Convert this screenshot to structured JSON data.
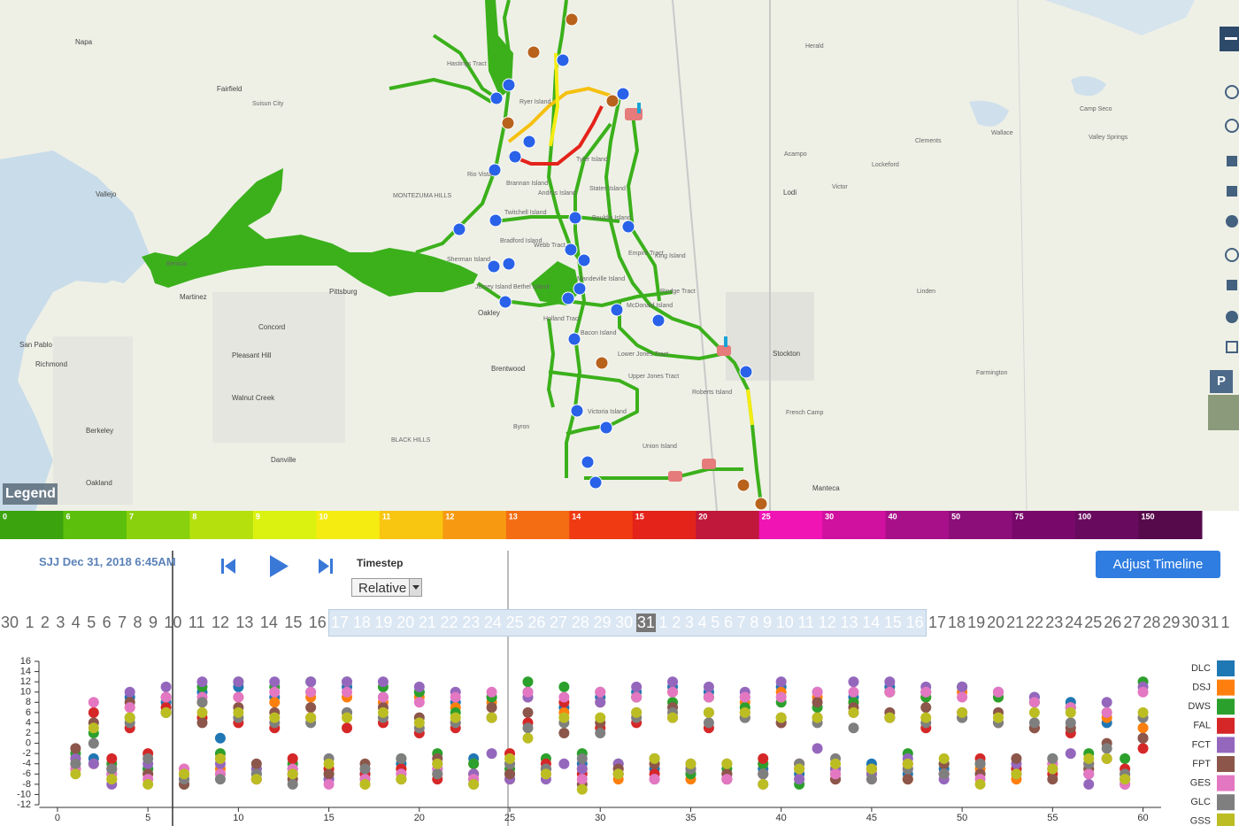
{
  "map": {
    "legend_label": "Legend",
    "labels": [
      "Napa",
      "Fairfield",
      "Suisun City",
      "Vallejo",
      "Benicia",
      "Martinez",
      "Concord",
      "Pittsburg",
      "Oakley",
      "Brentwood",
      "Richmond",
      "Berkeley",
      "Oakland",
      "Walnut Creek",
      "Pleasant Hill",
      "Danville",
      "San Pablo",
      "Stockton",
      "Lodi",
      "Manteca",
      "Lockeford",
      "Clements",
      "Acampo",
      "Victor",
      "Linden",
      "Farmington",
      "Herald",
      "Rio Vista",
      "MONTEZUMA HILLS",
      "Ryer Island",
      "Tyler Island",
      "Staten Island",
      "Bouldin Island",
      "Empire Tract",
      "King Island",
      "Webb Tract",
      "Sherman Island",
      "Bethel Island",
      "Jersey Island",
      "Holland Tract",
      "Bacon Island",
      "McDonald Island",
      "Mandeville Island",
      "Lower Jones Tract",
      "Upper Jones Tract",
      "Roberts Island",
      "Victoria Island",
      "Union Island",
      "Rindge Tract",
      "Hastings Tract",
      "Twitchell Island",
      "Bradford Island",
      "Andrus Island",
      "Brannan Island",
      "Camp Seco",
      "Valley Springs",
      "Wallace",
      "BLACK HILLS",
      "Byron",
      "French Camp"
    ]
  },
  "toolbar": {
    "p_label": "P"
  },
  "color_scale": {
    "stops": [
      {
        "value": 0,
        "color": "#3aa30e"
      },
      {
        "value": 6,
        "color": "#5cbf0c"
      },
      {
        "value": 7,
        "color": "#8ad10d"
      },
      {
        "value": 8,
        "color": "#b5e00e"
      },
      {
        "value": 9,
        "color": "#dbf210"
      },
      {
        "value": 10,
        "color": "#f5ec12"
      },
      {
        "value": 11,
        "color": "#f8c511"
      },
      {
        "value": 12,
        "color": "#f79a12"
      },
      {
        "value": 13,
        "color": "#f46d12"
      },
      {
        "value": 14,
        "color": "#ef3a12"
      },
      {
        "value": 15,
        "color": "#e4231a"
      },
      {
        "value": 20,
        "color": "#c0183a"
      },
      {
        "value": 25,
        "color": "#f014b4"
      },
      {
        "value": 30,
        "color": "#d0109e"
      },
      {
        "value": 40,
        "color": "#a8108a"
      },
      {
        "value": 50,
        "color": "#8c0e78"
      },
      {
        "value": 75,
        "color": "#78086a"
      },
      {
        "value": 100,
        "color": "#680a5e"
      },
      {
        "value": 150,
        "color": "#560a4c"
      }
    ]
  },
  "controls": {
    "station_time": "SJJ Dec 31, 2018 6:45AM",
    "timestep_label": "Timestep",
    "timestep_option": "Relative",
    "adjust_button": "Adjust Timeline"
  },
  "timeline": {
    "before": [
      30,
      1,
      2,
      3,
      4,
      5,
      6,
      7,
      8,
      9,
      10,
      11,
      12,
      13,
      14,
      15,
      16
    ],
    "selected": [
      17,
      18,
      19,
      20,
      21,
      22,
      23,
      24,
      25,
      26,
      27,
      28,
      29,
      30,
      31,
      1,
      2,
      3,
      4,
      5,
      6,
      7,
      8,
      9,
      10,
      11,
      12,
      13,
      14,
      15,
      16
    ],
    "after": [
      17,
      18,
      19,
      20,
      21,
      22,
      23,
      24,
      25,
      26,
      27,
      28,
      29,
      30,
      31,
      1
    ],
    "current": 31
  },
  "chart_data": {
    "type": "scatter",
    "x": [
      1,
      2,
      3,
      4,
      5,
      6,
      7,
      8,
      9,
      10,
      11,
      12,
      13,
      14,
      15,
      16,
      17,
      18,
      19,
      20,
      21,
      22,
      23,
      24,
      25,
      26,
      27,
      28,
      29,
      30,
      31,
      32,
      33,
      34,
      35,
      36,
      37,
      38,
      39,
      40,
      41,
      42,
      43,
      44,
      45,
      46,
      47,
      48,
      49,
      50,
      51,
      52,
      53,
      54,
      55,
      56,
      57,
      58,
      59,
      60
    ],
    "xlim": [
      -1,
      61
    ],
    "ylim": [
      -12,
      16
    ],
    "xticks": [
      0,
      5,
      10,
      15,
      20,
      25,
      30,
      35,
      40,
      45,
      50,
      55,
      60
    ],
    "yticks": [
      -12,
      -10,
      -8,
      -6,
      -4,
      -2,
      0,
      2,
      4,
      6,
      8,
      10,
      12,
      14,
      16
    ],
    "series": [
      {
        "name": "DLC",
        "color": "#1f77b4",
        "values": [
          -4,
          -3,
          -6,
          9,
          -5,
          8,
          -7,
          10,
          1,
          11,
          -6,
          9,
          -5,
          10,
          -7,
          11,
          -6,
          9,
          -4,
          10,
          -5,
          8,
          -3,
          9,
          -6,
          10,
          -5,
          7,
          -4,
          9,
          -6,
          10,
          -5,
          11,
          -6,
          10,
          -7,
          9,
          -5,
          11,
          -6,
          10,
          -5,
          9,
          -4,
          11,
          -6,
          10,
          -5,
          11,
          -4,
          10,
          -6,
          9,
          -5,
          8,
          -6,
          4,
          -7,
          1
        ]
      },
      {
        "name": "DSJ",
        "color": "#ff7f0e",
        "values": [
          -3,
          -4,
          -7,
          7,
          -6,
          6,
          -5,
          8,
          -5,
          9,
          -7,
          8,
          -6,
          9,
          -5,
          9,
          -8,
          8,
          -5,
          9,
          -6,
          7,
          -4,
          8,
          -7,
          9,
          -6,
          6,
          -5,
          8,
          -7,
          9,
          -4,
          10,
          -7,
          9,
          -6,
          8,
          -4,
          10,
          -7,
          9,
          -6,
          8,
          -5,
          10,
          -7,
          9,
          -6,
          10,
          -5,
          9,
          -7,
          8,
          -4,
          7,
          -5,
          5,
          -6,
          3
        ]
      },
      {
        "name": "DWS",
        "color": "#2ca02c",
        "values": [
          -2,
          2,
          -4,
          5,
          -5,
          6,
          -8,
          11,
          -2,
          12,
          -5,
          11,
          -4,
          12,
          -6,
          12,
          -7,
          11,
          -3,
          10,
          -2,
          6,
          -4,
          9,
          -5,
          12,
          -3,
          11,
          -2,
          10,
          -4,
          9,
          -3,
          8,
          -6,
          9,
          -5,
          7,
          -4,
          8,
          -8,
          7,
          -5,
          8,
          -6,
          10,
          -2,
          9,
          -4,
          11,
          -4,
          9,
          -5,
          8,
          -3,
          7,
          -2,
          6,
          -3,
          12
        ]
      },
      {
        "name": "FAL",
        "color": "#d62728",
        "values": [
          -5,
          6,
          -3,
          3,
          -2,
          7,
          -6,
          5,
          -3,
          4,
          -7,
          3,
          -3,
          5,
          -5,
          3,
          -6,
          4,
          -5,
          2,
          -7,
          3,
          -6,
          5,
          -2,
          4,
          -4,
          8,
          -6,
          3,
          -5,
          4,
          -6,
          5,
          -5,
          3,
          -7,
          6,
          -3,
          4,
          -4,
          5,
          -7,
          6,
          -5,
          5,
          -4,
          3,
          -6,
          6,
          -3,
          4,
          -5,
          3,
          -6,
          2,
          -4,
          -3,
          -5,
          -1
        ]
      },
      {
        "name": "FCT",
        "color": "#9467bd",
        "values": [
          -3,
          -4,
          -8,
          10,
          -4,
          11,
          -7,
          12,
          -4,
          12,
          -5,
          12,
          -6,
          12,
          -7,
          12,
          -5,
          12,
          -6,
          11,
          -4,
          10,
          -6,
          -2,
          -7,
          9,
          -7,
          -4,
          -5,
          8,
          -4,
          11,
          -7,
          12,
          -4,
          11,
          -6,
          10,
          -8,
          12,
          -7,
          -1,
          -5,
          12,
          -6,
          12,
          -3,
          11,
          -7,
          11,
          -6,
          10,
          -4,
          9,
          -5,
          -2,
          -8,
          8,
          -8,
          11
        ]
      },
      {
        "name": "FPT",
        "color": "#8c564b",
        "values": [
          -1,
          4,
          -5,
          8,
          -6,
          9,
          -8,
          4,
          -6,
          7,
          -4,
          6,
          -7,
          7,
          -6,
          6,
          -4,
          7,
          -7,
          5,
          -3,
          4,
          -7,
          7,
          -6,
          6,
          -5,
          2,
          -8,
          4,
          -5,
          6,
          -4,
          7,
          -5,
          6,
          -6,
          5,
          -6,
          4,
          -5,
          8,
          -7,
          7,
          -5,
          6,
          -7,
          7,
          -4,
          5,
          -6,
          6,
          -3,
          3,
          -7,
          3,
          -5,
          0,
          -7,
          1
        ]
      },
      {
        "name": "GES",
        "color": "#e377c2",
        "values": [
          -5,
          8,
          -6,
          7,
          -7,
          9,
          -5,
          9,
          -6,
          9,
          -7,
          10,
          -5,
          10,
          -8,
          10,
          -7,
          9,
          -6,
          8,
          -5,
          9,
          -7,
          10,
          -4,
          10,
          -6,
          9,
          -7,
          10,
          -6,
          9,
          -7,
          10,
          -5,
          9,
          -7,
          9,
          -6,
          9,
          -5,
          10,
          -6,
          10,
          -7,
          10,
          -5,
          10,
          -6,
          9,
          -7,
          10,
          -6,
          8,
          -4,
          7,
          -6,
          6,
          -8,
          10
        ]
      },
      {
        "name": "GLC",
        "color": "#7f7f7f",
        "values": [
          -4,
          0,
          -5,
          4,
          -3,
          6,
          -7,
          8,
          -7,
          5,
          -6,
          4,
          -8,
          4,
          -3,
          6,
          -5,
          5,
          -3,
          3,
          -6,
          4,
          -8,
          5,
          -4,
          3,
          -5,
          4,
          -3,
          2,
          -6,
          5,
          -3,
          6,
          -5,
          4,
          -4,
          5,
          -6,
          5,
          -4,
          4,
          -3,
          3,
          -7,
          5,
          -5,
          4,
          -6,
          5,
          -4,
          4,
          -6,
          4,
          -3,
          4,
          -4,
          -1,
          -6,
          5
        ]
      },
      {
        "name": "GSS",
        "color": "#bcbd22",
        "values": [
          -6,
          3,
          -7,
          5,
          -8,
          6,
          -6,
          6,
          -3,
          6,
          -7,
          5,
          -6,
          5,
          -4,
          5,
          -8,
          6,
          -7,
          4,
          -4,
          5,
          -8,
          5,
          -3,
          1,
          -6,
          5,
          -9,
          5,
          -6,
          6,
          -3,
          5,
          -4,
          6,
          -4,
          6,
          -8,
          5,
          -5,
          5,
          -4,
          6,
          -5,
          5,
          -4,
          5,
          -3,
          6,
          -8,
          5,
          -6,
          6,
          -5,
          6,
          -3,
          -3,
          -7,
          6
        ]
      }
    ]
  }
}
